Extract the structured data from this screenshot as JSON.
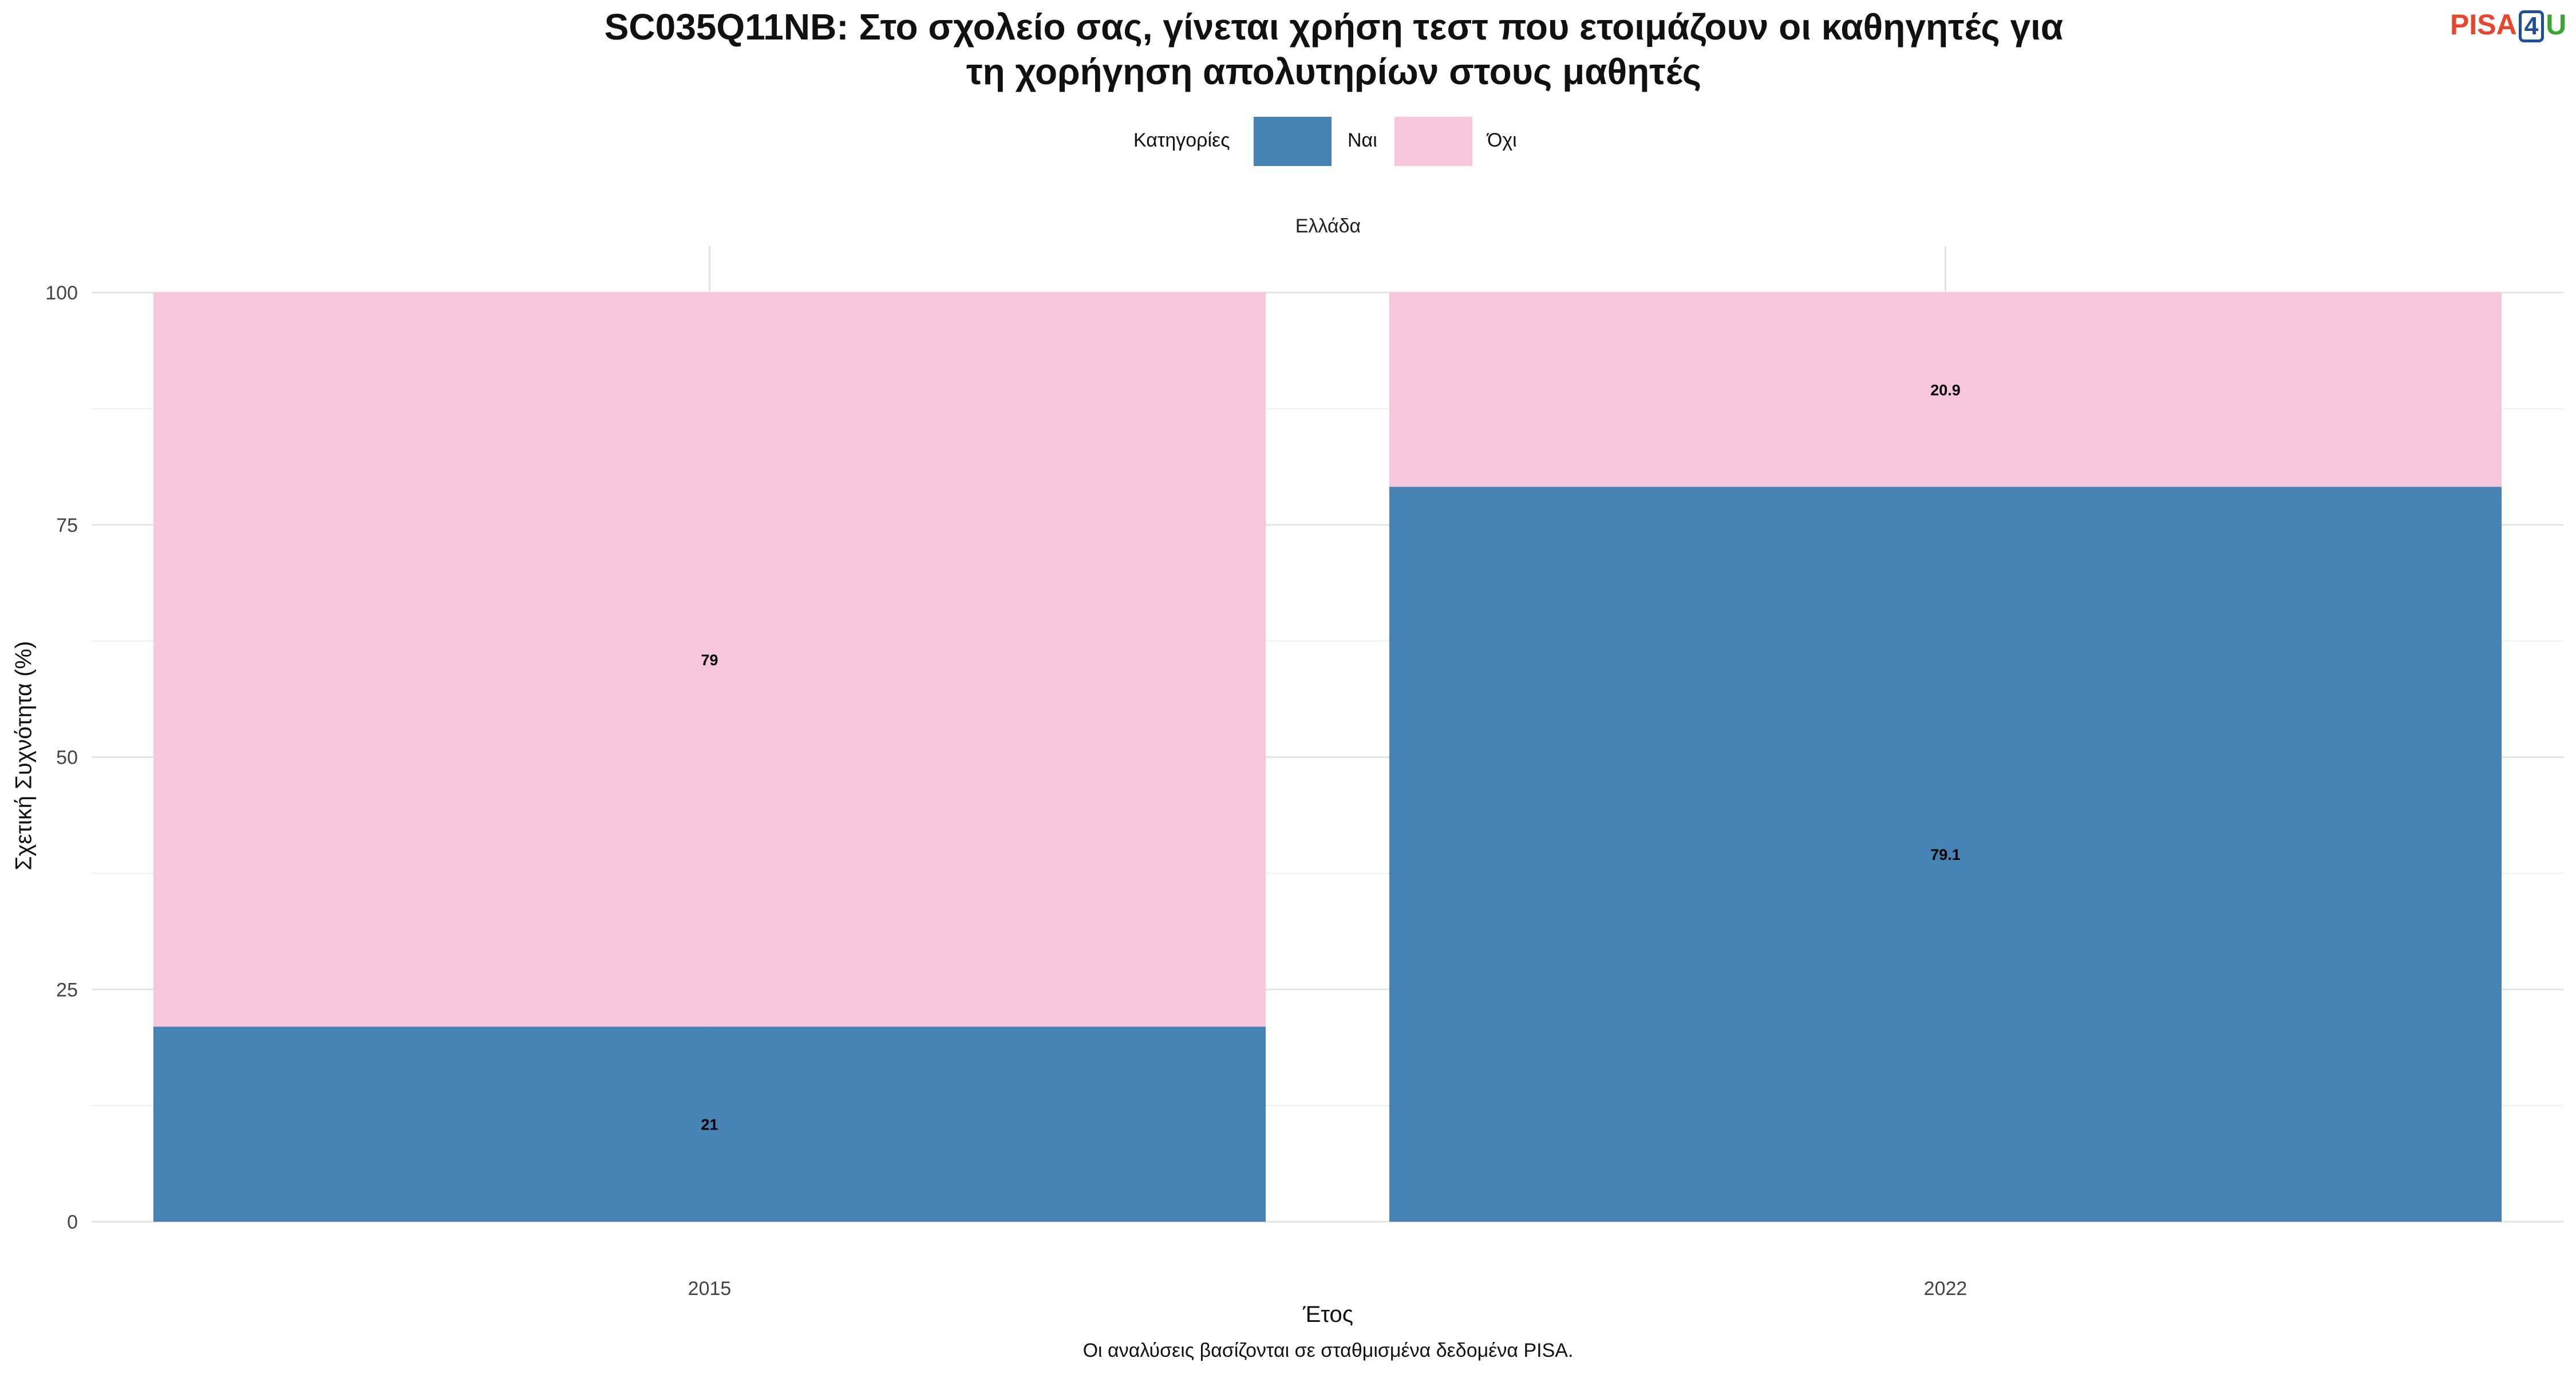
{
  "chart_data": {
    "type": "bar",
    "stacked": true,
    "percent": true,
    "title": "SC035Q11NB: Στο σχολείο σας, γίνεται χρήση τεστ που ετοιμάζουν οι καθηγητές για τη χορήγηση απολυτηρίων στους μαθητές",
    "title_lines": [
      "SC035Q11NB: Στο σχολείο σας, γίνεται χρήση τεστ που ετοιμάζουν οι καθηγητές για",
      "τη χορήγηση απολυτηρίων στους μαθητές"
    ],
    "facet": "Ελλάδα",
    "categories": [
      "2015",
      "2022"
    ],
    "series": [
      {
        "name": "Ναι",
        "color": "#4682b4",
        "values": [
          21,
          79.1
        ],
        "labels": [
          "21",
          "79.1"
        ]
      },
      {
        "name": "Όχι",
        "color": "#f7c6dc",
        "values": [
          79,
          20.9
        ],
        "labels": [
          "79",
          "20.9"
        ]
      }
    ],
    "legend": {
      "title": "Κατηγορίες",
      "position": "top"
    },
    "xlabel": "Έτος",
    "ylabel": "Σχετική Συχνότητα (%)",
    "ylim": [
      0,
      100
    ],
    "yticks": [
      0,
      25,
      50,
      75,
      100
    ],
    "grid": true,
    "caption": "Οι αναλύσεις βασίζονται σε σταθμισμένα δεδομένα PISA."
  },
  "logo": {
    "text_a": "PISA",
    "text_b": "4",
    "text_c": "U"
  }
}
